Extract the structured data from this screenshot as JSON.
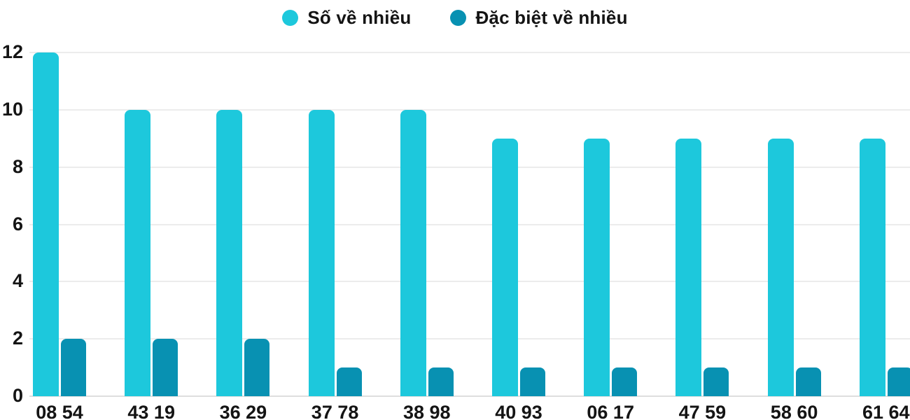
{
  "chart_data": {
    "type": "bar",
    "title": "",
    "xlabel": "",
    "ylabel": "",
    "categories": [
      "08 54",
      "43 19",
      "36 29",
      "37 78",
      "38 98",
      "40 93",
      "06 17",
      "47 59",
      "58 60",
      "61 64"
    ],
    "series": [
      {
        "name": "Số về nhiều",
        "color": "#1dc8dc",
        "values": [
          12,
          10,
          10,
          10,
          10,
          9,
          9,
          9,
          9,
          9
        ]
      },
      {
        "name": "Đặc biệt về nhiều",
        "color": "#0891b2",
        "values": [
          2,
          2,
          2,
          1,
          1,
          1,
          1,
          1,
          1,
          1
        ]
      }
    ],
    "y_ticks": [
      0,
      2,
      4,
      6,
      8,
      10,
      12
    ],
    "ylim": [
      0,
      12
    ],
    "grid": true,
    "legend_position": "top-center",
    "colors": {
      "grid_line": "#ececec",
      "axis_line": "#dedede",
      "text": "#141414",
      "background": "#ffffff"
    }
  }
}
